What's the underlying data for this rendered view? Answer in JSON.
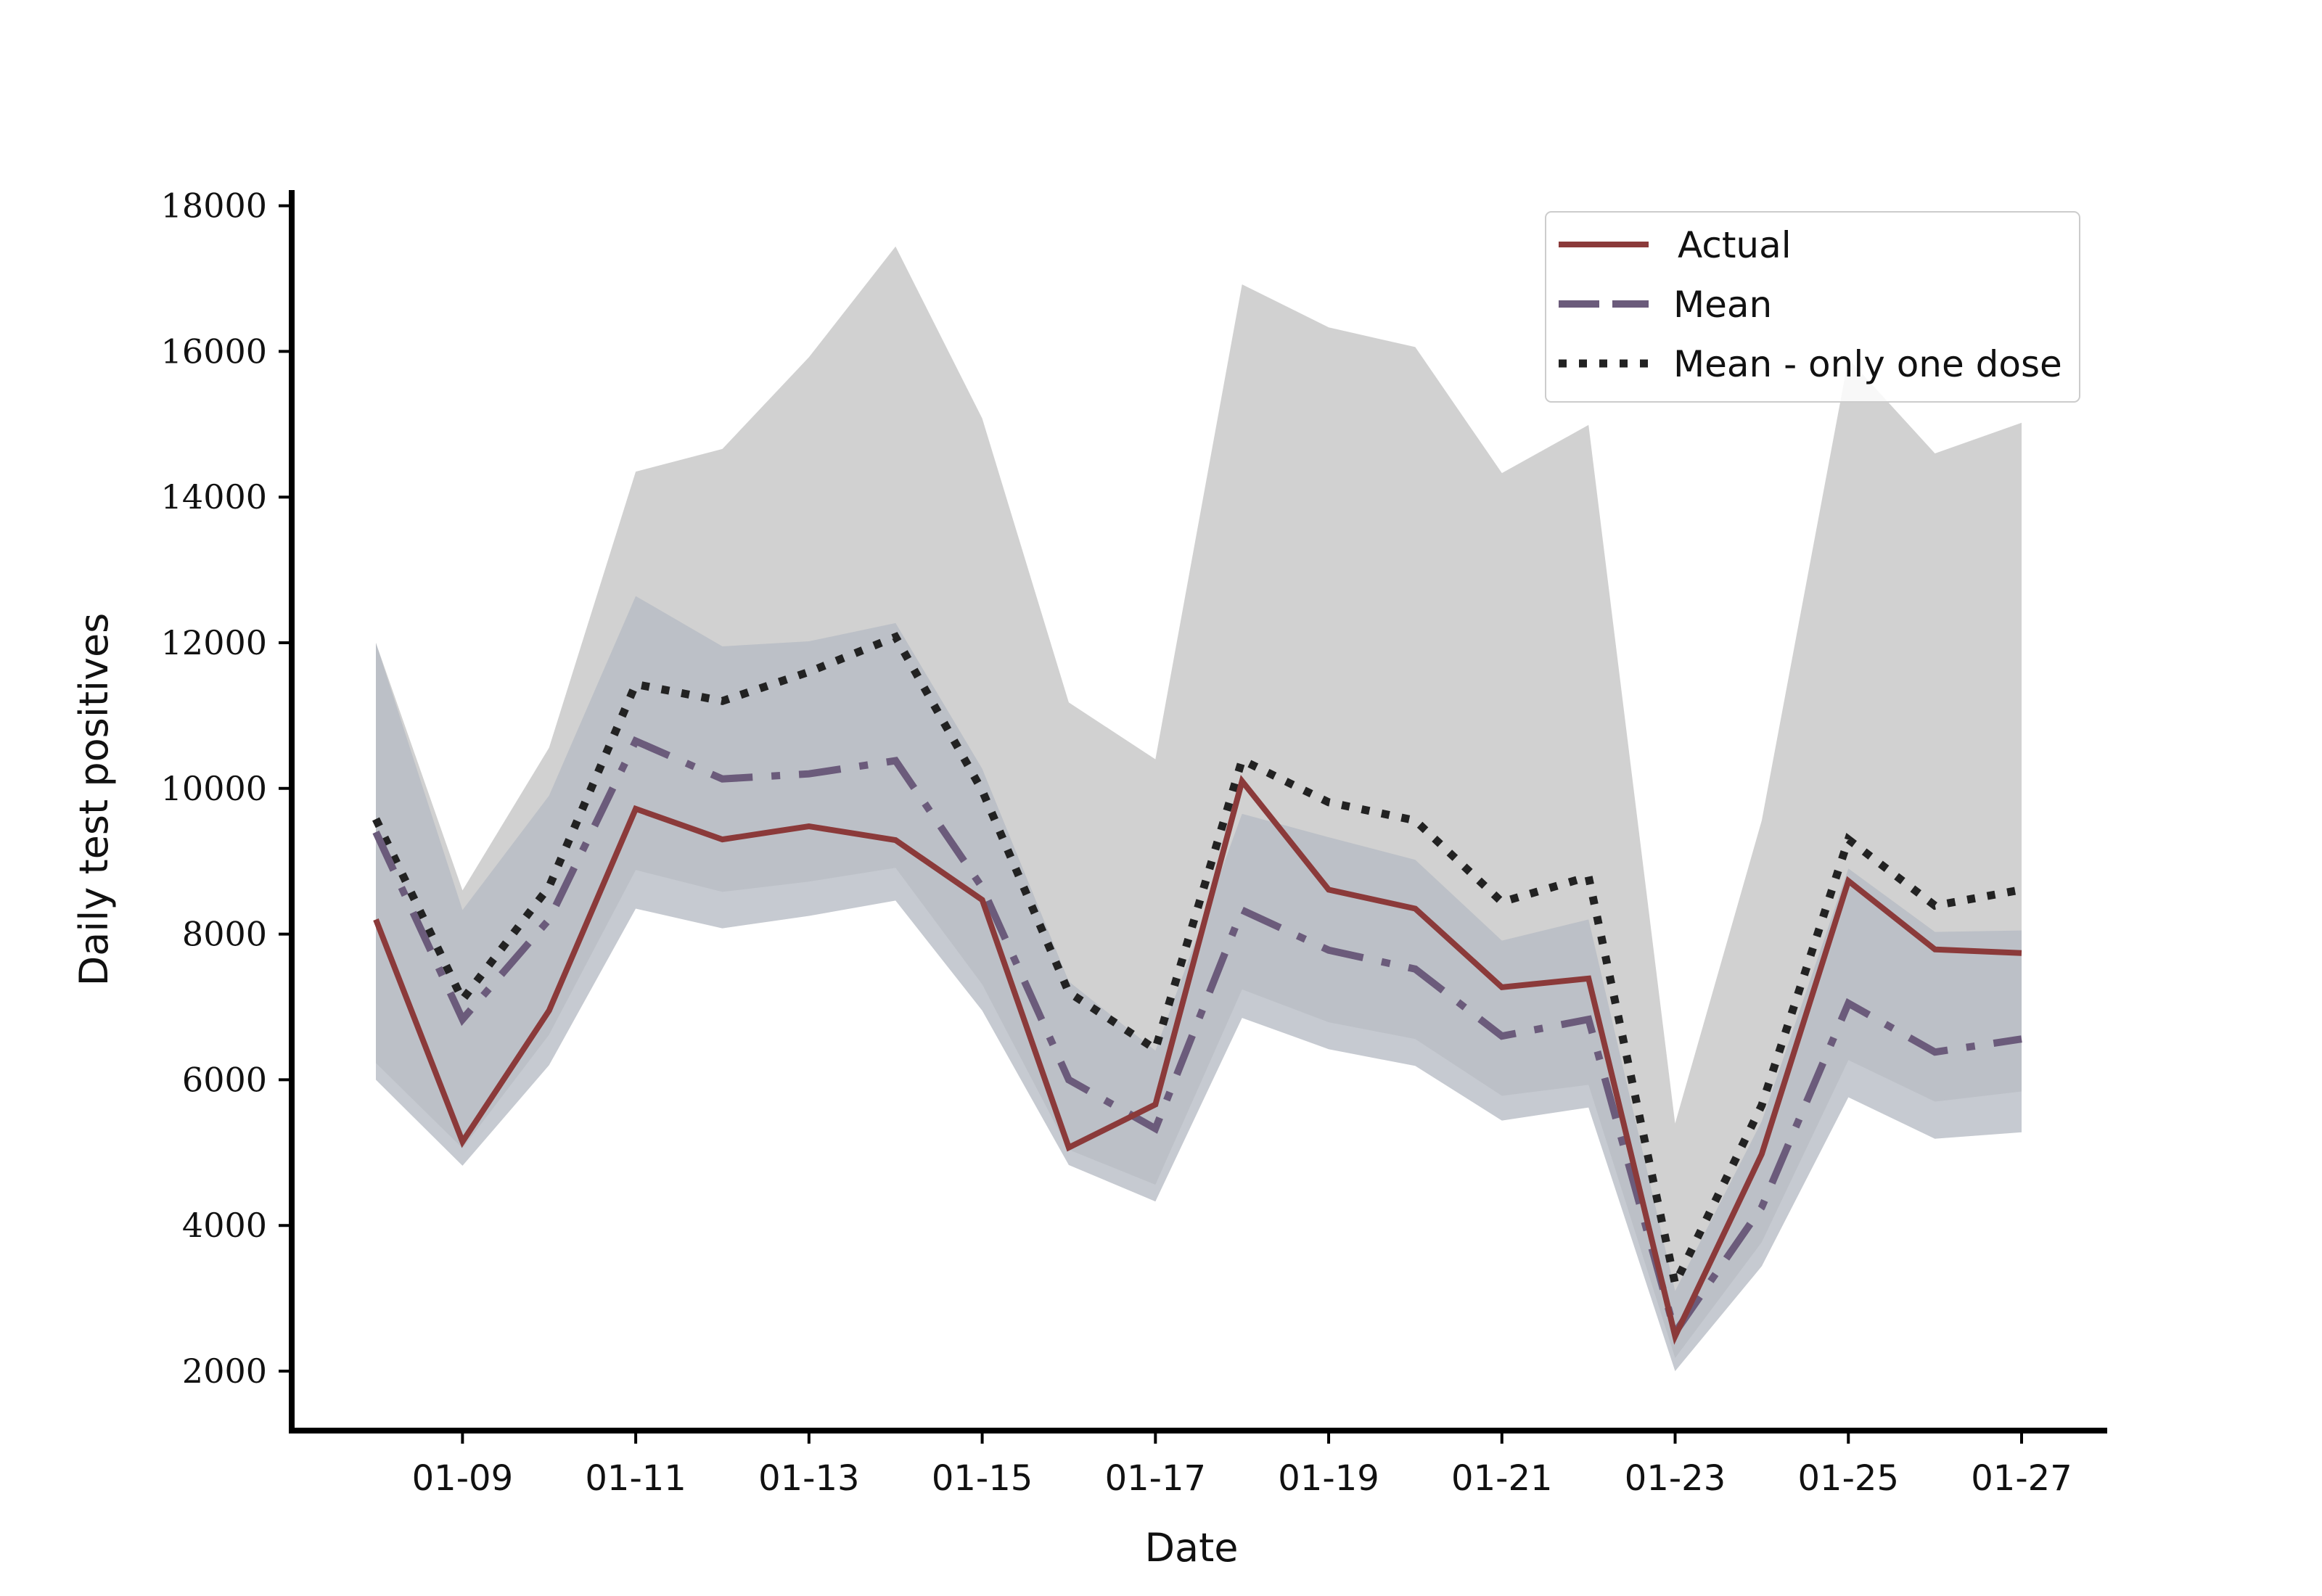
{
  "chart_data": {
    "type": "line",
    "title": "",
    "xlabel": "Date",
    "ylabel": "Daily test positives",
    "x": [
      "01-08",
      "01-09",
      "01-10",
      "01-11",
      "01-12",
      "01-13",
      "01-14",
      "01-15",
      "01-16",
      "01-17",
      "01-18",
      "01-19",
      "01-20",
      "01-21",
      "01-22",
      "01-23",
      "01-24",
      "01-25",
      "01-26",
      "01-27"
    ],
    "x_tick_labels": [
      "01-09",
      "01-11",
      "01-13",
      "01-15",
      "01-17",
      "01-19",
      "01-21",
      "01-23",
      "01-25",
      "01-27"
    ],
    "y_ticks": [
      2000,
      4000,
      6000,
      8000,
      10000,
      12000,
      14000,
      16000,
      18000
    ],
    "ylim": [
      1250,
      18300
    ],
    "grid": false,
    "legend_position": "top-right",
    "series": [
      {
        "name": "Actual",
        "style": "solid",
        "color": "#8b3a3a",
        "values": [
          8200,
          5150,
          6950,
          9720,
          9300,
          9480,
          9290,
          8470,
          5070,
          5660,
          10100,
          8610,
          8350,
          7270,
          7390,
          2480,
          4980,
          8730,
          7790,
          7740
        ]
      },
      {
        "name": "Mean",
        "style": "dashdot",
        "color": "#6b5b7b",
        "values": [
          9400,
          6830,
          8200,
          10650,
          10130,
          10200,
          10380,
          8640,
          6000,
          5330,
          8330,
          7780,
          7520,
          6600,
          6830,
          2530,
          4250,
          7050,
          6380,
          6560
        ]
      },
      {
        "name": "Mean - only one dose",
        "style": "dotted",
        "color": "#222222",
        "values": [
          9580,
          7100,
          8650,
          11430,
          11200,
          11600,
          12080,
          9970,
          7200,
          6420,
          10390,
          9810,
          9560,
          8440,
          8790,
          3200,
          5650,
          9300,
          8390,
          8610
        ]
      }
    ],
    "bands": [
      {
        "color": "#b5b5b5",
        "lower": [
          6000,
          4820,
          6200,
          8350,
          8080,
          8250,
          8460,
          6950,
          4830,
          4330,
          6850,
          6420,
          6190,
          5440,
          5620,
          2000,
          3440,
          5760,
          5190,
          5280
        ],
        "upper": [
          12000,
          8600,
          10560,
          14350,
          14660,
          15920,
          17440,
          15080,
          11180,
          10400,
          16920,
          16330,
          16060,
          14330,
          14990,
          5400,
          9560,
          15900,
          14600,
          15020
        ]
      },
      {
        "color": "#aebad0",
        "lower": [
          6000,
          4820,
          6200,
          8350,
          8080,
          8250,
          8460,
          6950,
          4830,
          4330,
          6850,
          6420,
          6190,
          5440,
          5620,
          2000,
          3440,
          5760,
          5190,
          5280
        ],
        "upper": [
          12000,
          8330,
          9900,
          12640,
          11950,
          12020,
          12270,
          10270,
          7350,
          6400,
          9650,
          9330,
          9020,
          7910,
          8200,
          3100,
          5430,
          8900,
          8030,
          8050
        ]
      },
      {
        "color": "#9aa0a6",
        "lower": [
          6230,
          5060,
          6620,
          8880,
          8580,
          8720,
          8910,
          7310,
          5040,
          4560,
          7240,
          6790,
          6560,
          5780,
          5930,
          2180,
          3770,
          6270,
          5700,
          5840
        ],
        "upper": [
          12000,
          8330,
          9900,
          12640,
          11950,
          12020,
          12270,
          10270,
          7350,
          6400,
          9650,
          9330,
          9020,
          7910,
          8200,
          3100,
          5430,
          8900,
          8030,
          8050
        ]
      }
    ]
  }
}
